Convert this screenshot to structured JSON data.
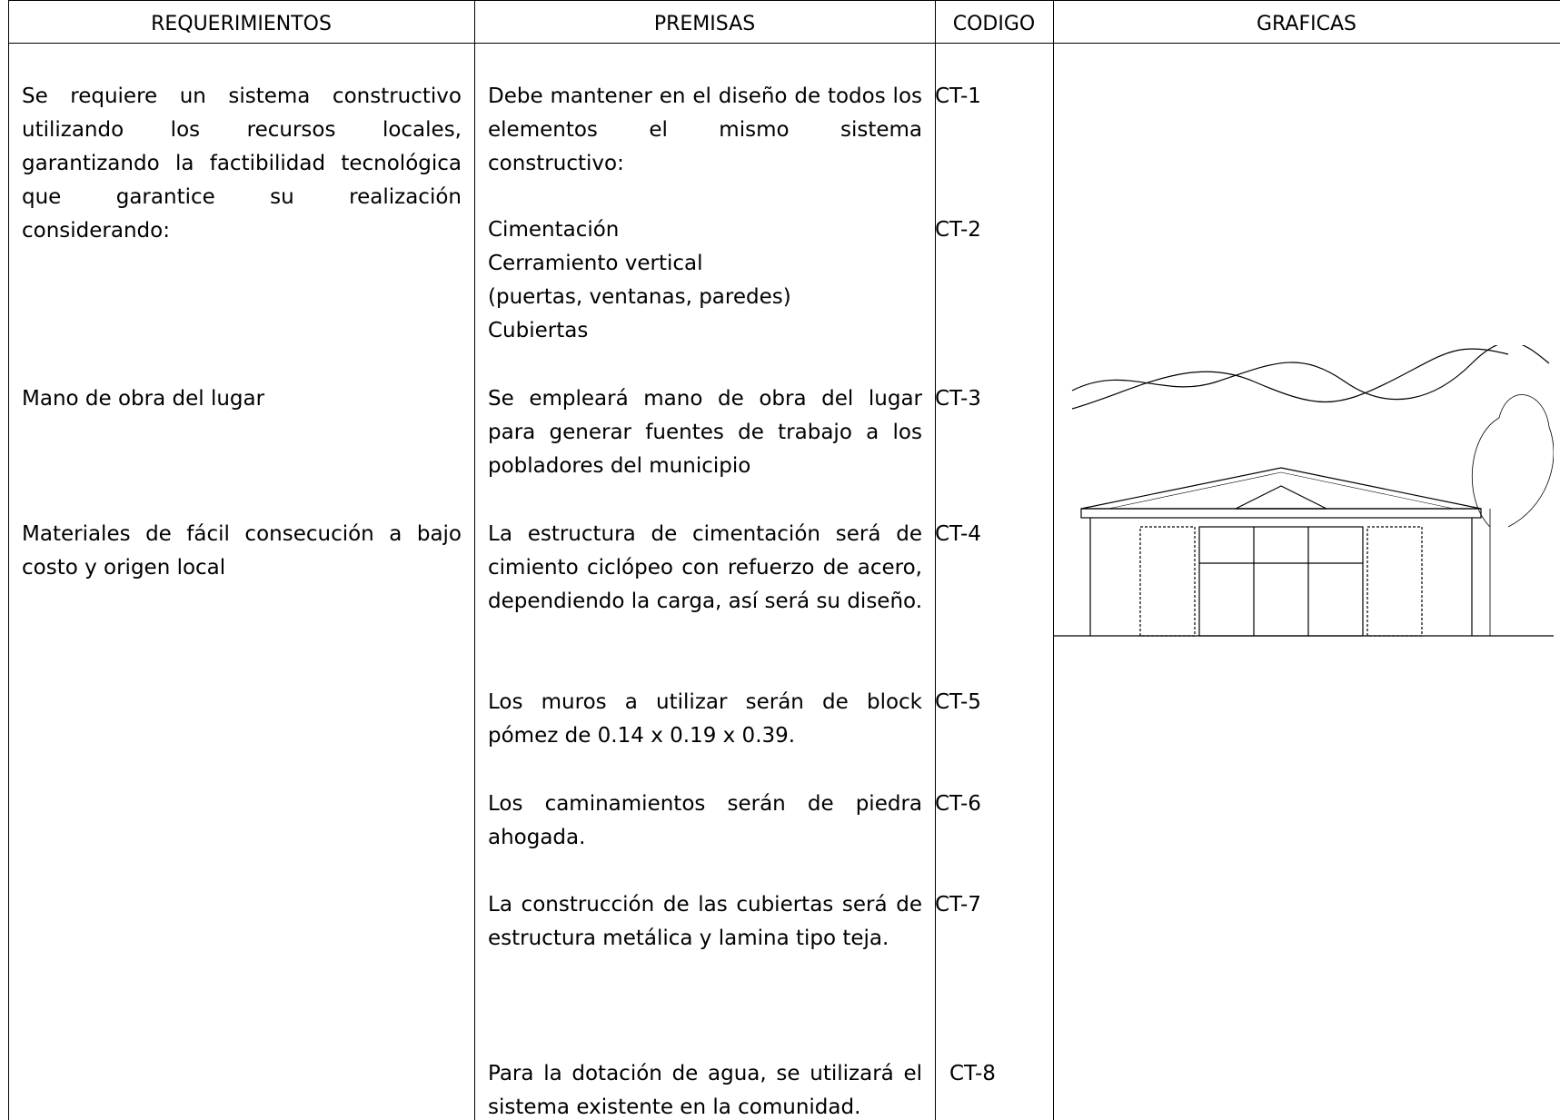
{
  "table": {
    "header": [
      "REQUERIMIENTOS",
      "PREMISAS",
      "CODIGO",
      "GRAFICAS"
    ],
    "rows": [
      {
        "requerimiento": "Se requiere un sistema constructivo utilizando los recursos locales, garantizando la factibilidad tecnológica que garantice su realización considerando:",
        "premisa": "Debe mantener en el diseño de todos los elementos el mismo sistema constructivo:",
        "codigo": "CT-1"
      },
      {
        "premisa": [
          "Cimentación",
          "Cerramiento vertical",
          "(puertas, ventanas, paredes)",
          "Cubiertas"
        ],
        "codigo": "CT-2"
      },
      {
        "requerimiento": "Mano de obra del lugar",
        "premisa": "Se empleará mano de obra del lugar para generar fuentes de trabajo a los pobladores del municipio",
        "codigo": "CT-3"
      },
      {
        "requerimiento": "Materiales de fácil consecución a bajo costo y origen local",
        "premisa": "La estructura de  cimentación será de cimiento ciclópeo con refuerzo de acero, dependiendo la carga, así será su diseño.",
        "codigo": "CT-4"
      },
      {
        "premisa": "Los muros a utilizar serán de block pómez de 0.14 x 0.19 x 0.39.",
        "codigo": "CT-5"
      },
      {
        "premisa": "Los caminamientos serán de piedra ahogada.",
        "codigo": "CT-6"
      },
      {
        "premisa": "La construcción de las cubiertas será de estructura metálica y lamina tipo teja.",
        "codigo": "CT-7"
      },
      {
        "premisa": "Para la dotación de agua, se utilizará el sistema existente en la comunidad.",
        "codigo": "CT-8"
      }
    ]
  }
}
